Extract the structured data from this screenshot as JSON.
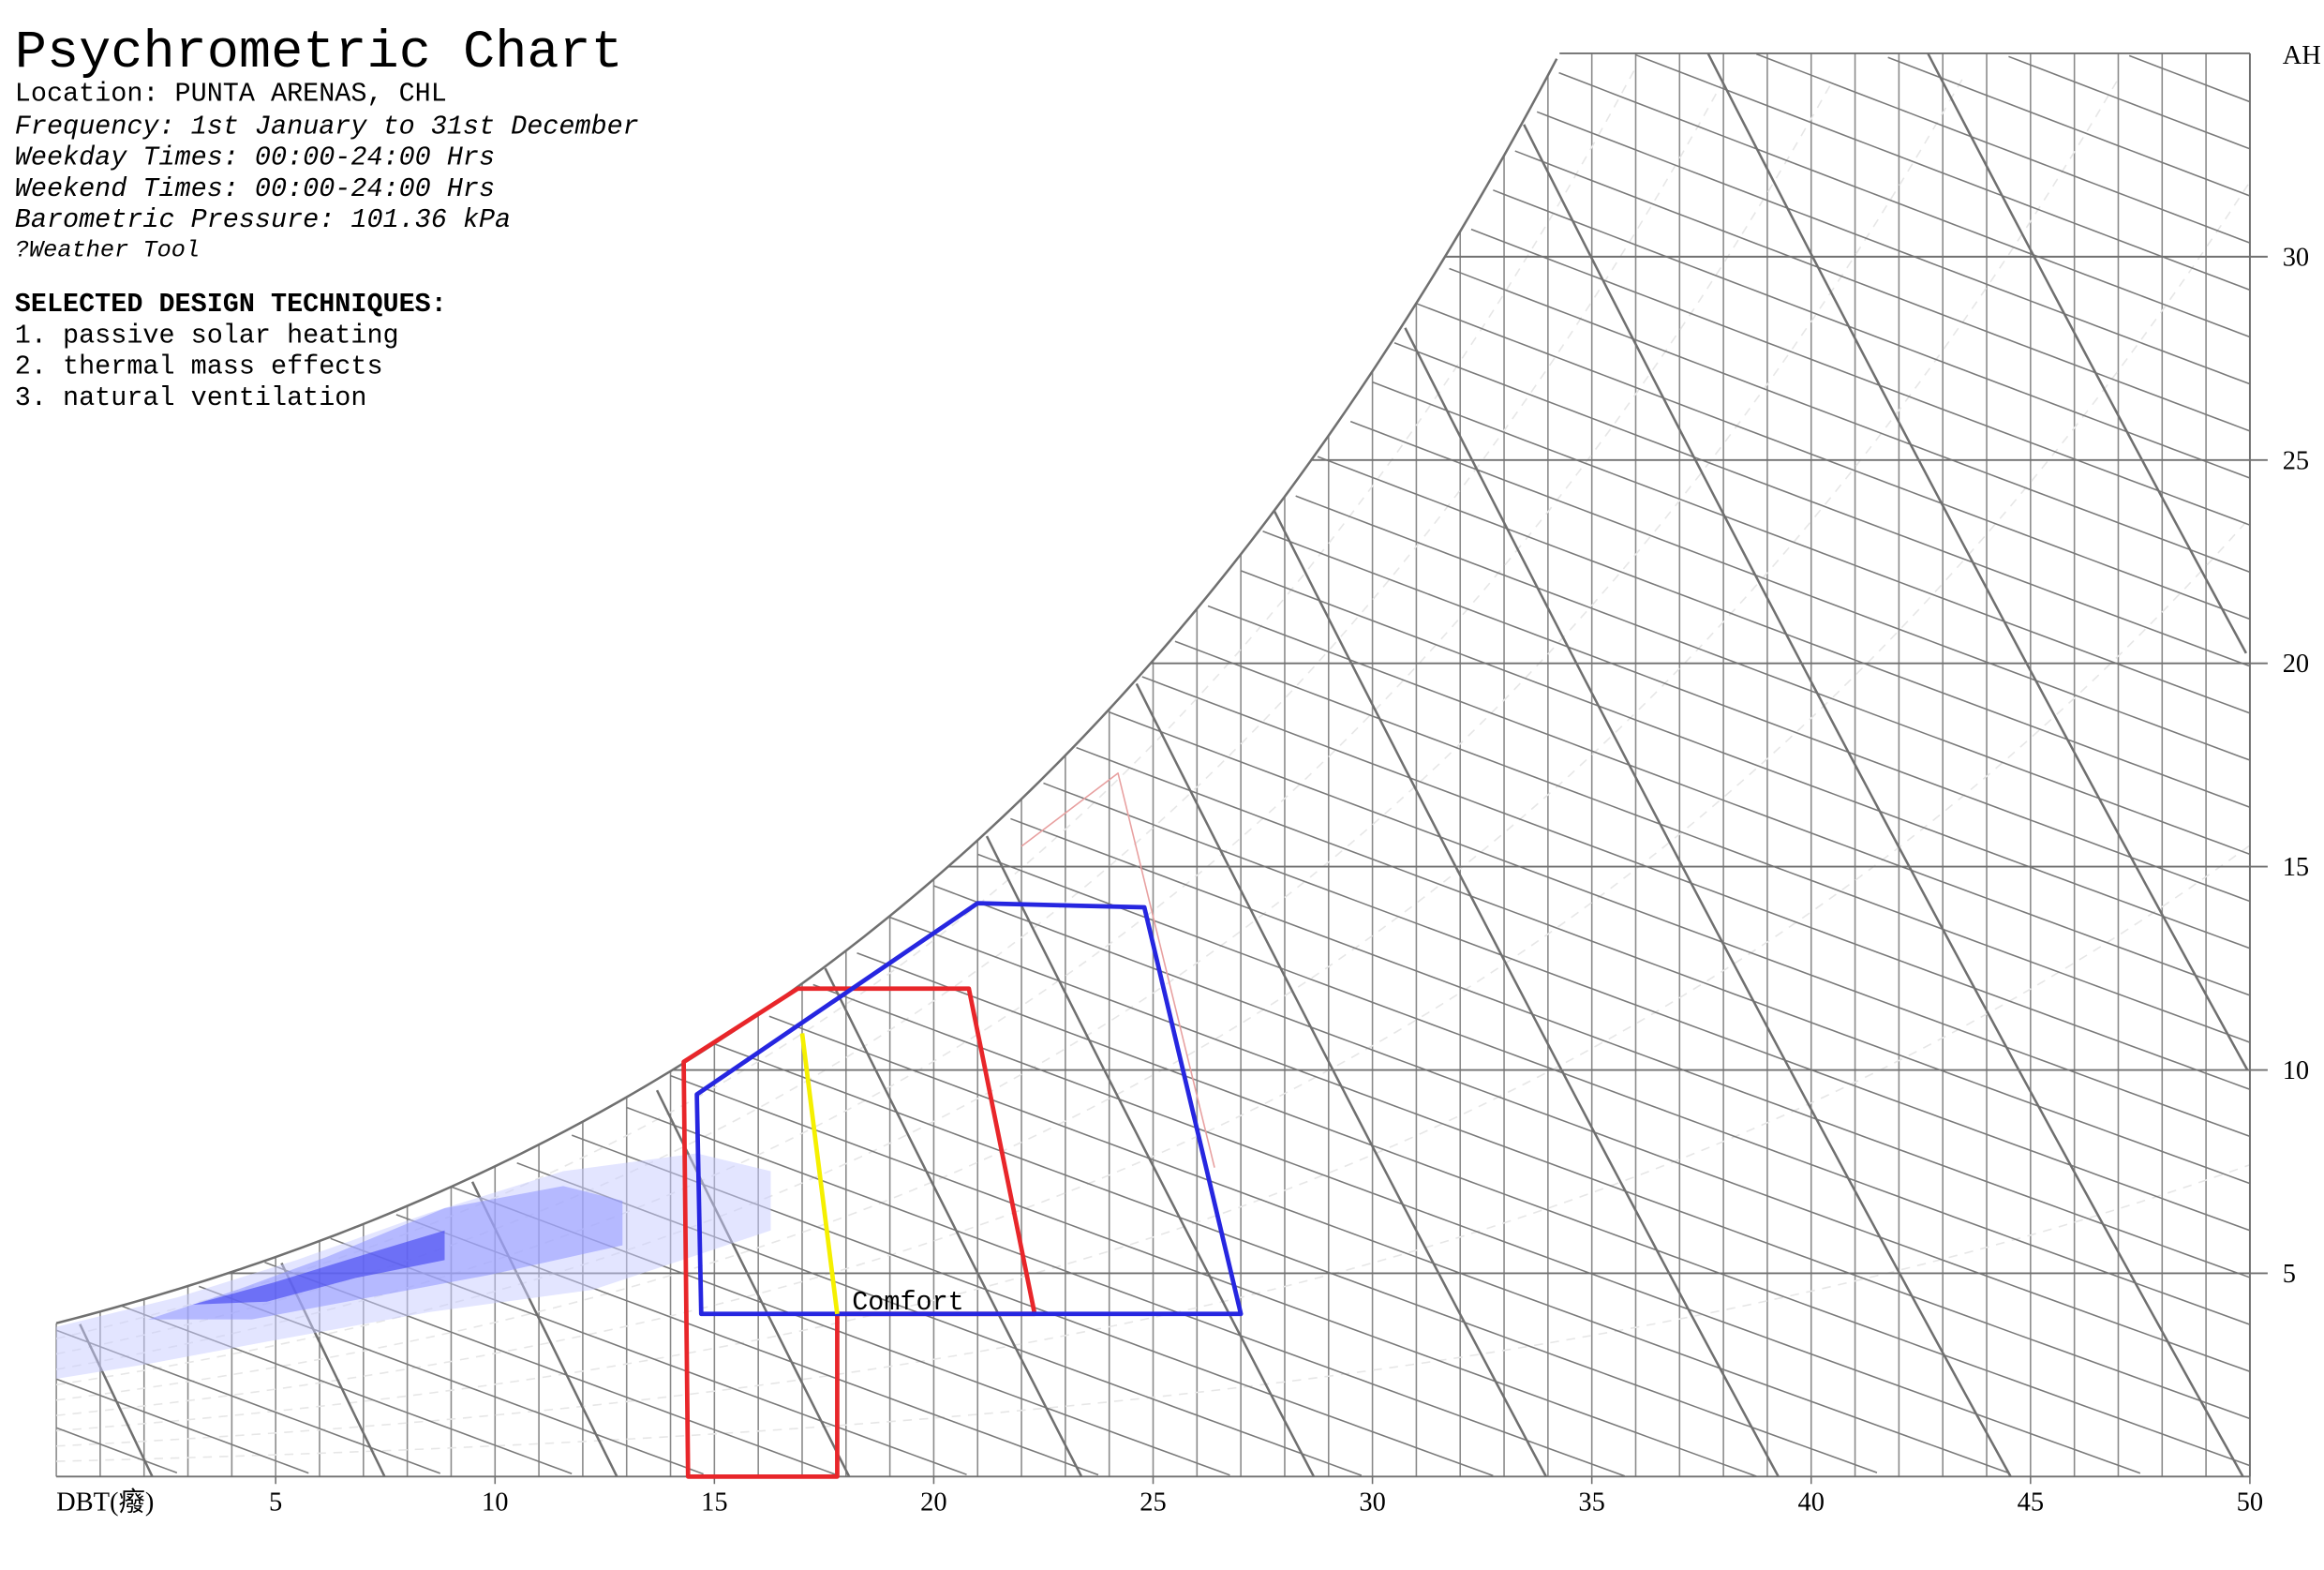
{
  "chart_data": {
    "type": "psychrometric",
    "title": "Psychrometric Chart",
    "info": [
      "Location: PUNTA ARENAS, CHL",
      "Frequency: 1st January to 31st December",
      "Weekday Times: 00:00-24:00 Hrs",
      "Weekend Times: 00:00-24:00 Hrs",
      "Barometric Pressure: 101.36 kPa",
      "?Weather Tool"
    ],
    "legend_title": "SELECTED DESIGN TECHNIQUES:",
    "x_label": "DBT(癈)",
    "y_label": "AH",
    "xlim": [
      0,
      50
    ],
    "ylim": [
      0,
      35
    ],
    "xticks": [
      5,
      10,
      15,
      20,
      25,
      30,
      35,
      40,
      45,
      50
    ],
    "yticks": [
      5,
      10,
      15,
      20,
      25,
      30
    ],
    "series": [
      {
        "name": "1. passive solar heating",
        "color": "#e8262a",
        "x": [
          14.4,
          17.8,
          17.8,
          22.3,
          20.8,
          16.9,
          14.3
        ],
        "y": [
          0,
          0,
          4.0,
          4.0,
          12.0,
          12.0,
          10.2
        ]
      },
      {
        "name": "2. thermal mass effects",
        "color": "#2626e0",
        "x": [
          14.7,
          27.0,
          24.8,
          21.0,
          14.6
        ],
        "y": [
          4.0,
          4.0,
          14.0,
          14.1,
          9.4
        ]
      },
      {
        "name": "3. natural ventilation",
        "color": "#e8a0a0",
        "x": [
          22.0,
          24.2,
          26.4
        ],
        "y": [
          15.5,
          17.3,
          7.6
        ]
      }
    ],
    "comfort": {
      "name": "Comfort",
      "color": "#f5f000",
      "x": [
        17.0,
        17.8
      ],
      "y": [
        10.9,
        4.0
      ]
    }
  }
}
